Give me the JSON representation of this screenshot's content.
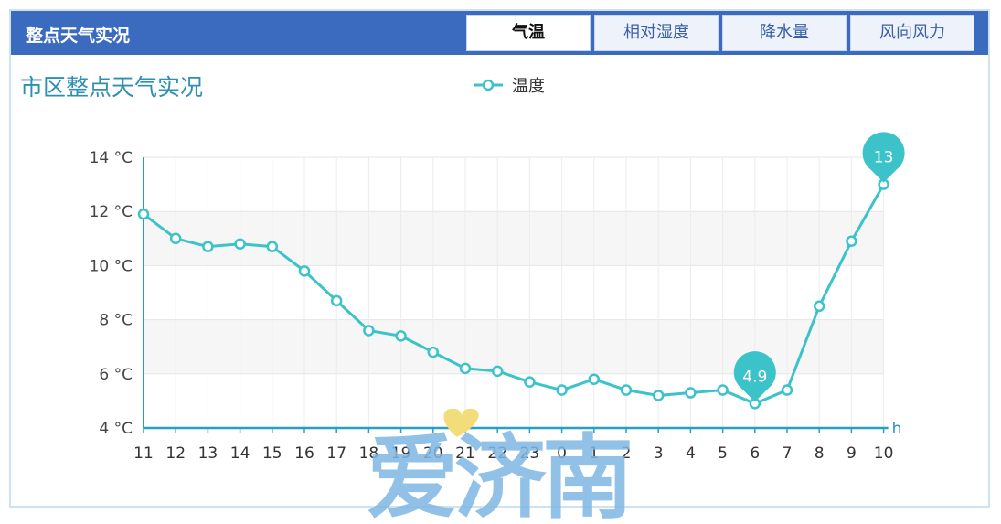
{
  "header": {
    "title": "整点天气实况",
    "tabs": [
      {
        "label": "气温",
        "active": true
      },
      {
        "label": "相对湿度",
        "active": false
      },
      {
        "label": "降水量",
        "active": false
      },
      {
        "label": "风向风力",
        "active": false
      }
    ]
  },
  "chart_data": {
    "type": "line",
    "title": "市区整点天气实况",
    "legend": {
      "label": "温度",
      "position": "top-center"
    },
    "x_unit": "h",
    "y_unit": "°C",
    "ylim": [
      4,
      14
    ],
    "yticks": [
      "4 °C",
      "6 °C",
      "8 °C",
      "10 °C",
      "12 °C",
      "14 °C"
    ],
    "categories": [
      "11",
      "12",
      "13",
      "14",
      "15",
      "16",
      "17",
      "18",
      "19",
      "20",
      "21",
      "22",
      "23",
      "0",
      "1",
      "2",
      "3",
      "4",
      "5",
      "6",
      "7",
      "8",
      "9",
      "10"
    ],
    "series": [
      {
        "name": "温度",
        "color": "#3cc3c9",
        "values": [
          11.9,
          11.0,
          10.7,
          10.8,
          10.7,
          9.8,
          8.7,
          7.6,
          7.4,
          6.8,
          6.2,
          6.1,
          5.7,
          5.4,
          5.8,
          5.4,
          5.2,
          5.3,
          5.4,
          4.9,
          5.4,
          8.5,
          10.9,
          13.0
        ]
      }
    ],
    "markers": [
      {
        "type": "min",
        "label": "4.9",
        "index": 19
      },
      {
        "type": "max",
        "label": "13",
        "index": 23
      }
    ],
    "grid": true
  },
  "watermark": {
    "text": "爱济南",
    "color": "#7fb7e3",
    "heart_color": "#f3dc7a"
  }
}
